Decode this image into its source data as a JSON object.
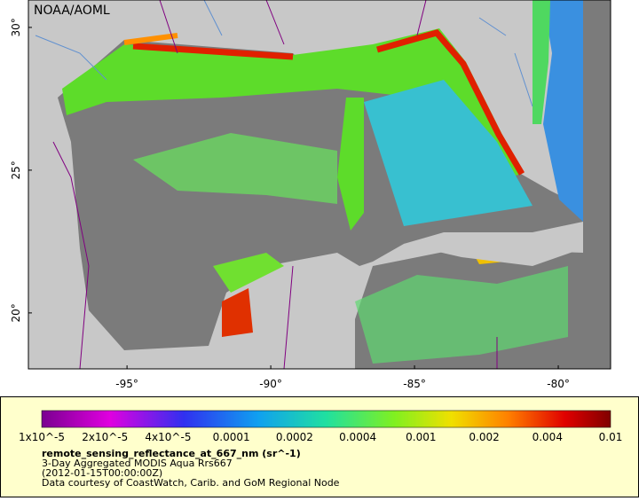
{
  "map": {
    "watermark": "NOAA/AOML",
    "lonlim": [
      -98.43,
      -78.18
    ],
    "latlim": [
      18.04,
      30.96
    ],
    "lon_ticks": [
      {
        "value": -95,
        "label": "-95°"
      },
      {
        "value": -90,
        "label": "-90°"
      },
      {
        "value": -85,
        "label": "-85°"
      },
      {
        "value": -80,
        "label": "-80°"
      }
    ],
    "lat_ticks": [
      {
        "value": 30,
        "label": "30°"
      },
      {
        "value": 25,
        "label": "25°"
      },
      {
        "value": 20,
        "label": "20°"
      }
    ]
  },
  "legend": {
    "ticks": [
      "1x10^-5",
      "2x10^-5",
      "4x10^-5",
      "0.0001",
      "0.0002",
      "0.0004",
      "0.001",
      "0.002",
      "0.004",
      "0.01"
    ],
    "title": "remote_sensing_reflectance_at_667_nm (sr^-1)",
    "lines": [
      "3-Day Aggregated MODIS Aqua Rrs667",
      "(2012-01-15T00:00:00Z)",
      "Data courtesy of CoastWatch, Carib. and GoM Regional Node"
    ]
  }
}
